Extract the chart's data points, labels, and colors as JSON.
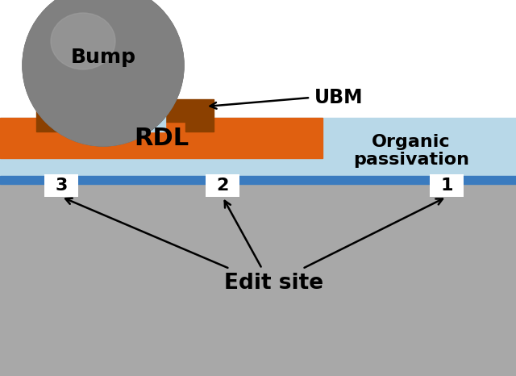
{
  "bg_color": "#ffffff",
  "substrate_color": "#a8a8a8",
  "passivation_light_color": "#b8d8e8",
  "passivation_dark_color": "#3a7bbf",
  "rdl_color": "#e06010",
  "ubm_color": "#8b4000",
  "bump_color": "#808080",
  "bump_dark_color": "#606060",
  "text_color": "#000000",
  "site_box_color": "#ffffff",
  "labels": {
    "bump": "Bump",
    "ubm": "UBM",
    "rdl": "RDL",
    "organic": "Organic",
    "passivation": "passivation",
    "edit_site": "Edit site",
    "site1": "1",
    "site2": "2",
    "site3": "3"
  },
  "figsize": [
    6.4,
    4.66
  ],
  "dpi": 100
}
